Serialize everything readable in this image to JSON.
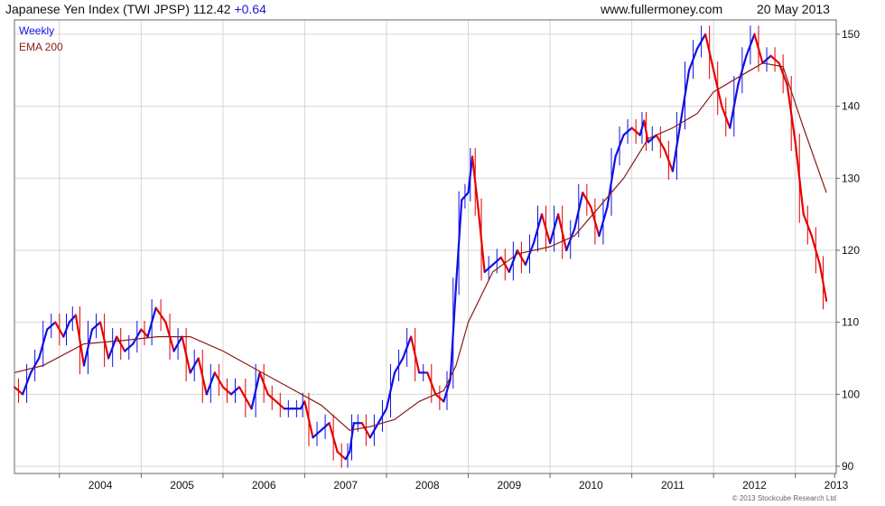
{
  "header": {
    "title": "Japanese Yen Index (TWI JPSP) 112.42",
    "change": "+0.64",
    "site": "www.fullermoney.com",
    "date": "20 May 2013"
  },
  "copyright": "© 2013 Stockcube Research Ltd",
  "colors": {
    "up": "#1010e6",
    "down": "#e60000",
    "ema": "#8b1a1a",
    "grid": "#d6d6d6",
    "frame": "#666666"
  },
  "chart_data": {
    "type": "line",
    "title": "Japanese Yen Index (TWI JPSP)",
    "ylim": [
      89,
      152
    ],
    "xlim": [
      2003.45,
      2013.5
    ],
    "y_ticks": [
      90,
      100,
      110,
      120,
      130,
      140,
      150
    ],
    "x_ticks": [
      "2004",
      "2005",
      "2006",
      "2007",
      "2008",
      "2009",
      "2010",
      "2011",
      "2012",
      "2013"
    ],
    "grid": true,
    "y_axis_position": "right",
    "legend": {
      "position": "top-left",
      "entries": [
        "Weekly",
        "EMA 200"
      ]
    },
    "series": [
      {
        "name": "Weekly",
        "x": [
          2003.45,
          2003.55,
          2003.65,
          2003.75,
          2003.85,
          2003.95,
          2004.05,
          2004.12,
          2004.2,
          2004.3,
          2004.4,
          2004.5,
          2004.6,
          2004.7,
          2004.8,
          2004.9,
          2005.0,
          2005.08,
          2005.18,
          2005.3,
          2005.4,
          2005.5,
          2005.6,
          2005.7,
          2005.8,
          2005.9,
          2006.0,
          2006.1,
          2006.2,
          2006.35,
          2006.45,
          2006.55,
          2006.65,
          2006.75,
          2006.85,
          2006.95,
          2007.0,
          2007.1,
          2007.2,
          2007.3,
          2007.4,
          2007.5,
          2007.55,
          2007.6,
          2007.7,
          2007.8,
          2007.9,
          2008.0,
          2008.1,
          2008.2,
          2008.3,
          2008.4,
          2008.5,
          2008.6,
          2008.7,
          2008.78,
          2008.85,
          2008.92,
          2009.0,
          2009.05,
          2009.12,
          2009.2,
          2009.3,
          2009.4,
          2009.5,
          2009.6,
          2009.7,
          2009.8,
          2009.9,
          2010.0,
          2010.1,
          2010.2,
          2010.3,
          2010.4,
          2010.5,
          2010.6,
          2010.7,
          2010.8,
          2010.9,
          2011.0,
          2011.1,
          2011.15,
          2011.2,
          2011.3,
          2011.4,
          2011.5,
          2011.6,
          2011.7,
          2011.8,
          2011.9,
          2012.0,
          2012.1,
          2012.2,
          2012.3,
          2012.4,
          2012.5,
          2012.6,
          2012.7,
          2012.8,
          2012.9,
          2013.0,
          2013.1,
          2013.2,
          2013.3,
          2013.38
        ],
        "values": [
          101,
          100,
          103,
          105,
          109,
          110,
          108,
          110,
          111,
          104,
          109,
          110,
          105,
          108,
          106,
          107,
          109,
          108,
          112,
          110,
          106,
          108,
          103,
          105,
          100,
          103,
          101,
          100,
          101,
          98,
          103,
          100,
          99,
          98,
          98,
          98,
          99,
          94,
          95,
          96,
          92,
          91,
          92,
          96,
          96,
          94,
          96,
          98,
          103,
          105,
          108,
          103,
          103,
          100,
          99,
          102,
          115,
          127,
          128,
          133,
          126,
          117,
          118,
          119,
          117,
          120,
          118,
          121,
          125,
          121,
          125,
          120,
          123,
          128,
          126,
          122,
          126,
          133,
          136,
          137,
          136,
          138,
          135,
          136,
          134,
          131,
          138,
          145,
          148,
          150,
          145,
          140,
          137,
          143,
          147,
          150,
          146,
          147,
          146,
          143,
          135,
          125,
          122,
          118,
          113
        ]
      },
      {
        "name": "EMA 200",
        "x": [
          2003.45,
          2003.8,
          2004.3,
          2004.8,
          2005.2,
          2005.6,
          2006.0,
          2006.4,
          2006.8,
          2007.2,
          2007.55,
          2007.8,
          2008.1,
          2008.4,
          2008.7,
          2008.85,
          2009.0,
          2009.3,
          2009.6,
          2010.0,
          2010.3,
          2010.6,
          2010.9,
          2011.2,
          2011.5,
          2011.8,
          2012.0,
          2012.3,
          2012.6,
          2012.85,
          2013.1,
          2013.38
        ],
        "values": [
          103,
          104,
          107,
          107.5,
          108,
          108,
          106,
          103.5,
          101,
          98.5,
          95,
          95.5,
          96.5,
          99,
          100.5,
          104,
          110,
          117,
          119.5,
          120.5,
          122,
          126,
          130,
          135.5,
          137,
          139,
          142,
          144,
          146,
          145.5,
          137,
          128
        ]
      }
    ]
  }
}
